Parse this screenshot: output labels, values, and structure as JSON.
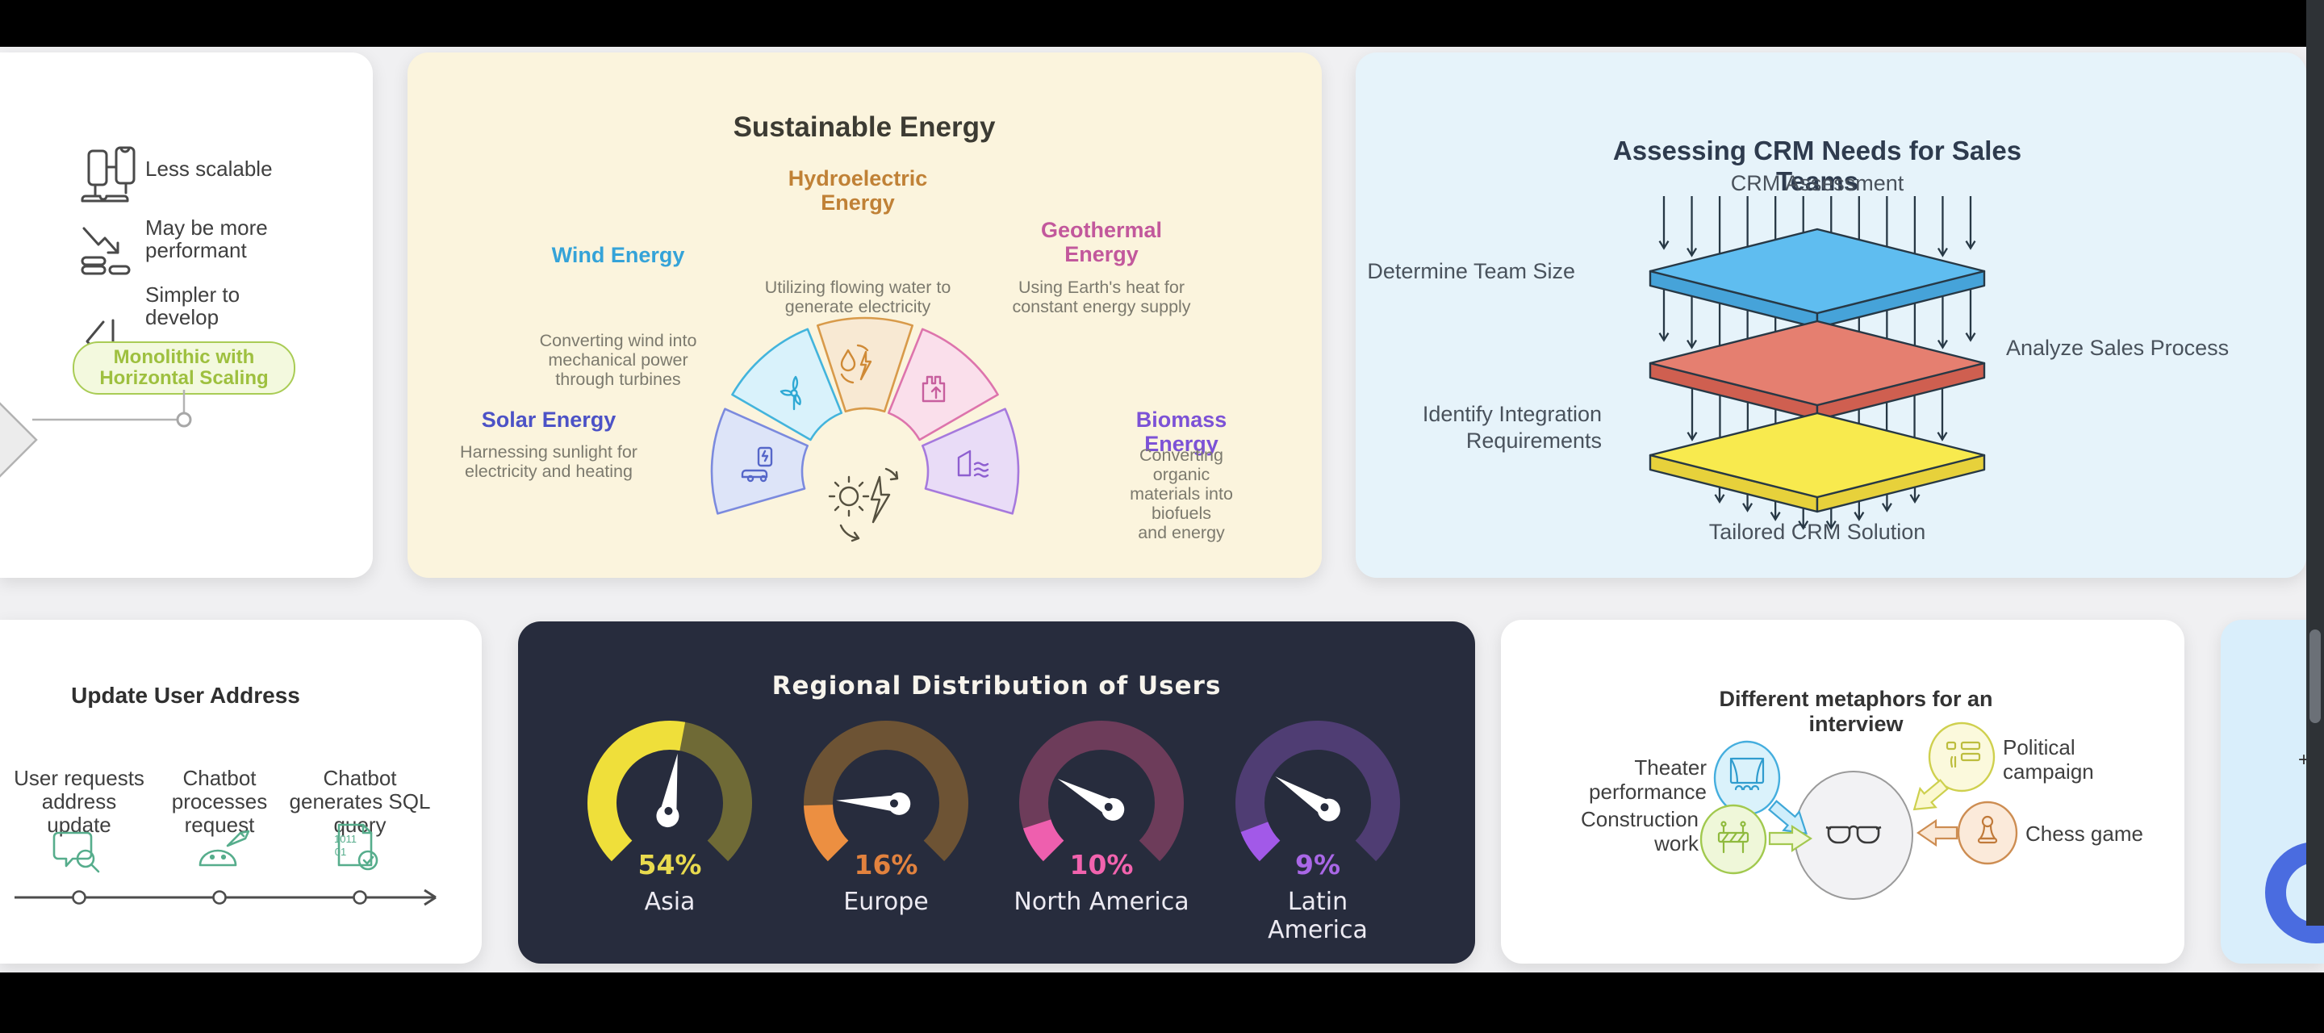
{
  "page": {
    "bg": "#000000",
    "stage_bg": "#f0f0f2"
  },
  "chart_data": {
    "type": "gauge",
    "title": "Regional Distribution of Users",
    "categories": [
      "Asia",
      "Europe",
      "North America",
      "Latin America"
    ],
    "values": [
      54,
      16,
      10,
      9
    ],
    "unit": "%",
    "value_labels": [
      "54%",
      "16%",
      "10%",
      "9%"
    ],
    "value_label_colors": [
      "#e8da4e",
      "#e2823e",
      "#f263ae",
      "#a967e6"
    ],
    "arc_active_colors": [
      "#efdf3a",
      "#ec8f41",
      "#ee5fae",
      "#a259e8"
    ],
    "arc_track_colors": [
      "#6f6a36",
      "#6d5334",
      "#6d3c5a",
      "#4f3d73"
    ],
    "needle_color": "#ffffff",
    "background": "#272c3d",
    "sweep_degrees": 270,
    "legend_position": "none"
  },
  "cards": {
    "monolith": {
      "items": [
        {
          "icon": "devices-icon",
          "lines": [
            "Less scalable"
          ]
        },
        {
          "icon": "decline-coins-icon",
          "lines": [
            "May be more",
            "performant"
          ]
        },
        {
          "icon": "code-icon",
          "lines": [
            "Simpler to",
            "develop"
          ]
        }
      ],
      "pill_lines": [
        "Monolithic with",
        "Horizontal Scaling"
      ],
      "pill_colors": {
        "fill": "#f3f9de",
        "stroke": "#a9cc55",
        "text": "#9ec03f"
      }
    },
    "energy": {
      "title": "Sustainable Energy",
      "segments": [
        {
          "name_lines": [
            "Wind Energy"
          ],
          "desc_lines": [
            "Converting wind into",
            "mechanical power",
            "through turbines"
          ],
          "color": "#35a3d8",
          "wedge_fill": "#d9f2fb",
          "wedge_stroke": "#43b4dc"
        },
        {
          "name_lines": [
            "Hydroelectric",
            "Energy"
          ],
          "desc_lines": [
            "Utilizing flowing water to",
            "generate electricity"
          ],
          "color": "#c08136",
          "wedge_fill": "#f8e9d3",
          "wedge_stroke": "#d89a4a"
        },
        {
          "name_lines": [
            "Geothermal",
            "Energy"
          ],
          "desc_lines": [
            "Using Earth's heat for",
            "constant energy supply"
          ],
          "color": "#c2589c",
          "wedge_fill": "#fadfeb",
          "wedge_stroke": "#dd74ac"
        },
        {
          "name_lines": [
            "Solar Energy"
          ],
          "desc_lines": [
            "Harnessing sunlight for",
            "electricity and heating"
          ],
          "color": "#4c52c6",
          "wedge_fill": "#dde4f8",
          "wedge_stroke": "#7b8ade"
        },
        {
          "name_lines": [
            "Biomass Energy"
          ],
          "desc_lines": [
            "Converting organic",
            "materials into biofuels",
            "and energy"
          ],
          "color": "#7c52d6",
          "wedge_fill": "#e9dcf7",
          "wedge_stroke": "#a679dd"
        }
      ]
    },
    "crm": {
      "title": "Assessing CRM Needs for Sales Teams",
      "top_label": "CRM Assessment",
      "layers": [
        {
          "label_lines": [
            "Determine Team Size"
          ],
          "side": "left",
          "fill": "#5fbdf0",
          "side_fill": "#46a3d9"
        },
        {
          "label_lines": [
            "Analyze Sales Process"
          ],
          "side": "right",
          "fill": "#e57f70",
          "side_fill": "#cf5f50"
        },
        {
          "label_lines": [
            "Identify Integration",
            "Requirements"
          ],
          "side": "left",
          "fill": "#f8ea4e",
          "side_fill": "#e7d13b"
        }
      ],
      "bottom_label": "Tailored CRM Solution"
    },
    "flow": {
      "title": "Update User Address",
      "steps": [
        {
          "icon": "chat-search-icon",
          "lines": [
            "User requests",
            "address",
            "update"
          ]
        },
        {
          "icon": "chatbot-icon",
          "lines": [
            "Chatbot",
            "processes",
            "request"
          ]
        },
        {
          "icon": "sql-document-icon",
          "lines": [
            "Chatbot",
            "generates SQL",
            "query"
          ]
        }
      ]
    },
    "metaphors": {
      "title": "Different metaphors for an interview",
      "items": [
        {
          "icon": "theater-icon",
          "lines": [
            "Theater",
            "performance"
          ]
        },
        {
          "icon": "political-icon",
          "lines": [
            "Political",
            "campaign"
          ]
        },
        {
          "icon": "construction-icon",
          "lines": [
            "Construction",
            "work"
          ]
        },
        {
          "icon": "chess-icon",
          "lines": [
            "Chess game"
          ]
        }
      ]
    },
    "side_panel": {
      "glyph": "+"
    }
  }
}
